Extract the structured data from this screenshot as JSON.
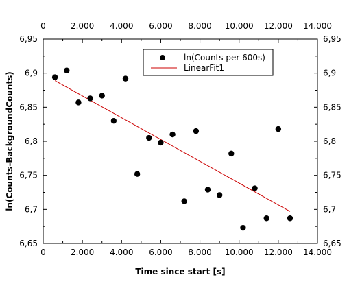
{
  "chart_data": {
    "type": "scatter",
    "title": "",
    "xlabel": "Time since start [s]",
    "ylabel": "ln(Counts-BackgroundCounts)",
    "xlim": [
      0,
      14000
    ],
    "ylim": [
      6.65,
      6.95
    ],
    "x_ticks": [
      0,
      2000,
      4000,
      6000,
      8000,
      10000,
      12000,
      14000
    ],
    "x_tick_labels": [
      "0",
      "2.000",
      "4.000",
      "6.000",
      "8.000",
      "10.000",
      "12.000",
      "14.000"
    ],
    "y_ticks": [
      6.65,
      6.7,
      6.75,
      6.8,
      6.85,
      6.9,
      6.95
    ],
    "y_tick_labels_left": [
      "6,65",
      "6,7",
      "6,75",
      "6,8",
      "6,85",
      "6,9",
      "6,95"
    ],
    "y_tick_labels_right": [
      "6,65",
      "6,7",
      "6,75",
      "6,8",
      "6,85",
      "6,9",
      "6,95"
    ],
    "grid": false,
    "legend_position": "top-right",
    "series": [
      {
        "name": "ln(Counts per 600s)",
        "kind": "scatter",
        "color": "#000000",
        "x": [
          600,
          1200,
          1800,
          2400,
          3000,
          3600,
          4200,
          4800,
          5400,
          6000,
          6600,
          7200,
          7800,
          8400,
          9000,
          9600,
          10200,
          10800,
          11400,
          12000,
          12600
        ],
        "y": [
          6.894,
          6.904,
          6.857,
          6.863,
          6.867,
          6.83,
          6.892,
          6.752,
          6.805,
          6.798,
          6.81,
          6.712,
          6.815,
          6.729,
          6.721,
          6.782,
          6.673,
          6.731,
          6.687,
          6.818,
          6.687
        ]
      },
      {
        "name": "LinearFit1",
        "kind": "line",
        "color": "#cc0000",
        "x": [
          600,
          12600
        ],
        "y": [
          6.889,
          6.697
        ]
      }
    ]
  }
}
